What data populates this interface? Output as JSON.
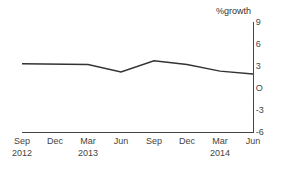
{
  "chart_data": {
    "type": "line",
    "categories": [
      "Sep\n2012",
      "Dec",
      "Mar\n2013",
      "Jun",
      "Sep",
      "Dec",
      "Mar\n2014",
      "Jun"
    ],
    "values": [
      3.3,
      3.3,
      3.2,
      2.2,
      3.7,
      3.2,
      2.3,
      1.9
    ],
    "color": "#333333",
    "ylabel": "%growth",
    "ylim": [
      -6,
      9
    ],
    "yticks": [
      -6,
      -3,
      {
        "value": 0,
        "label": "O"
      },
      3,
      6,
      9
    ],
    "grid": false
  }
}
